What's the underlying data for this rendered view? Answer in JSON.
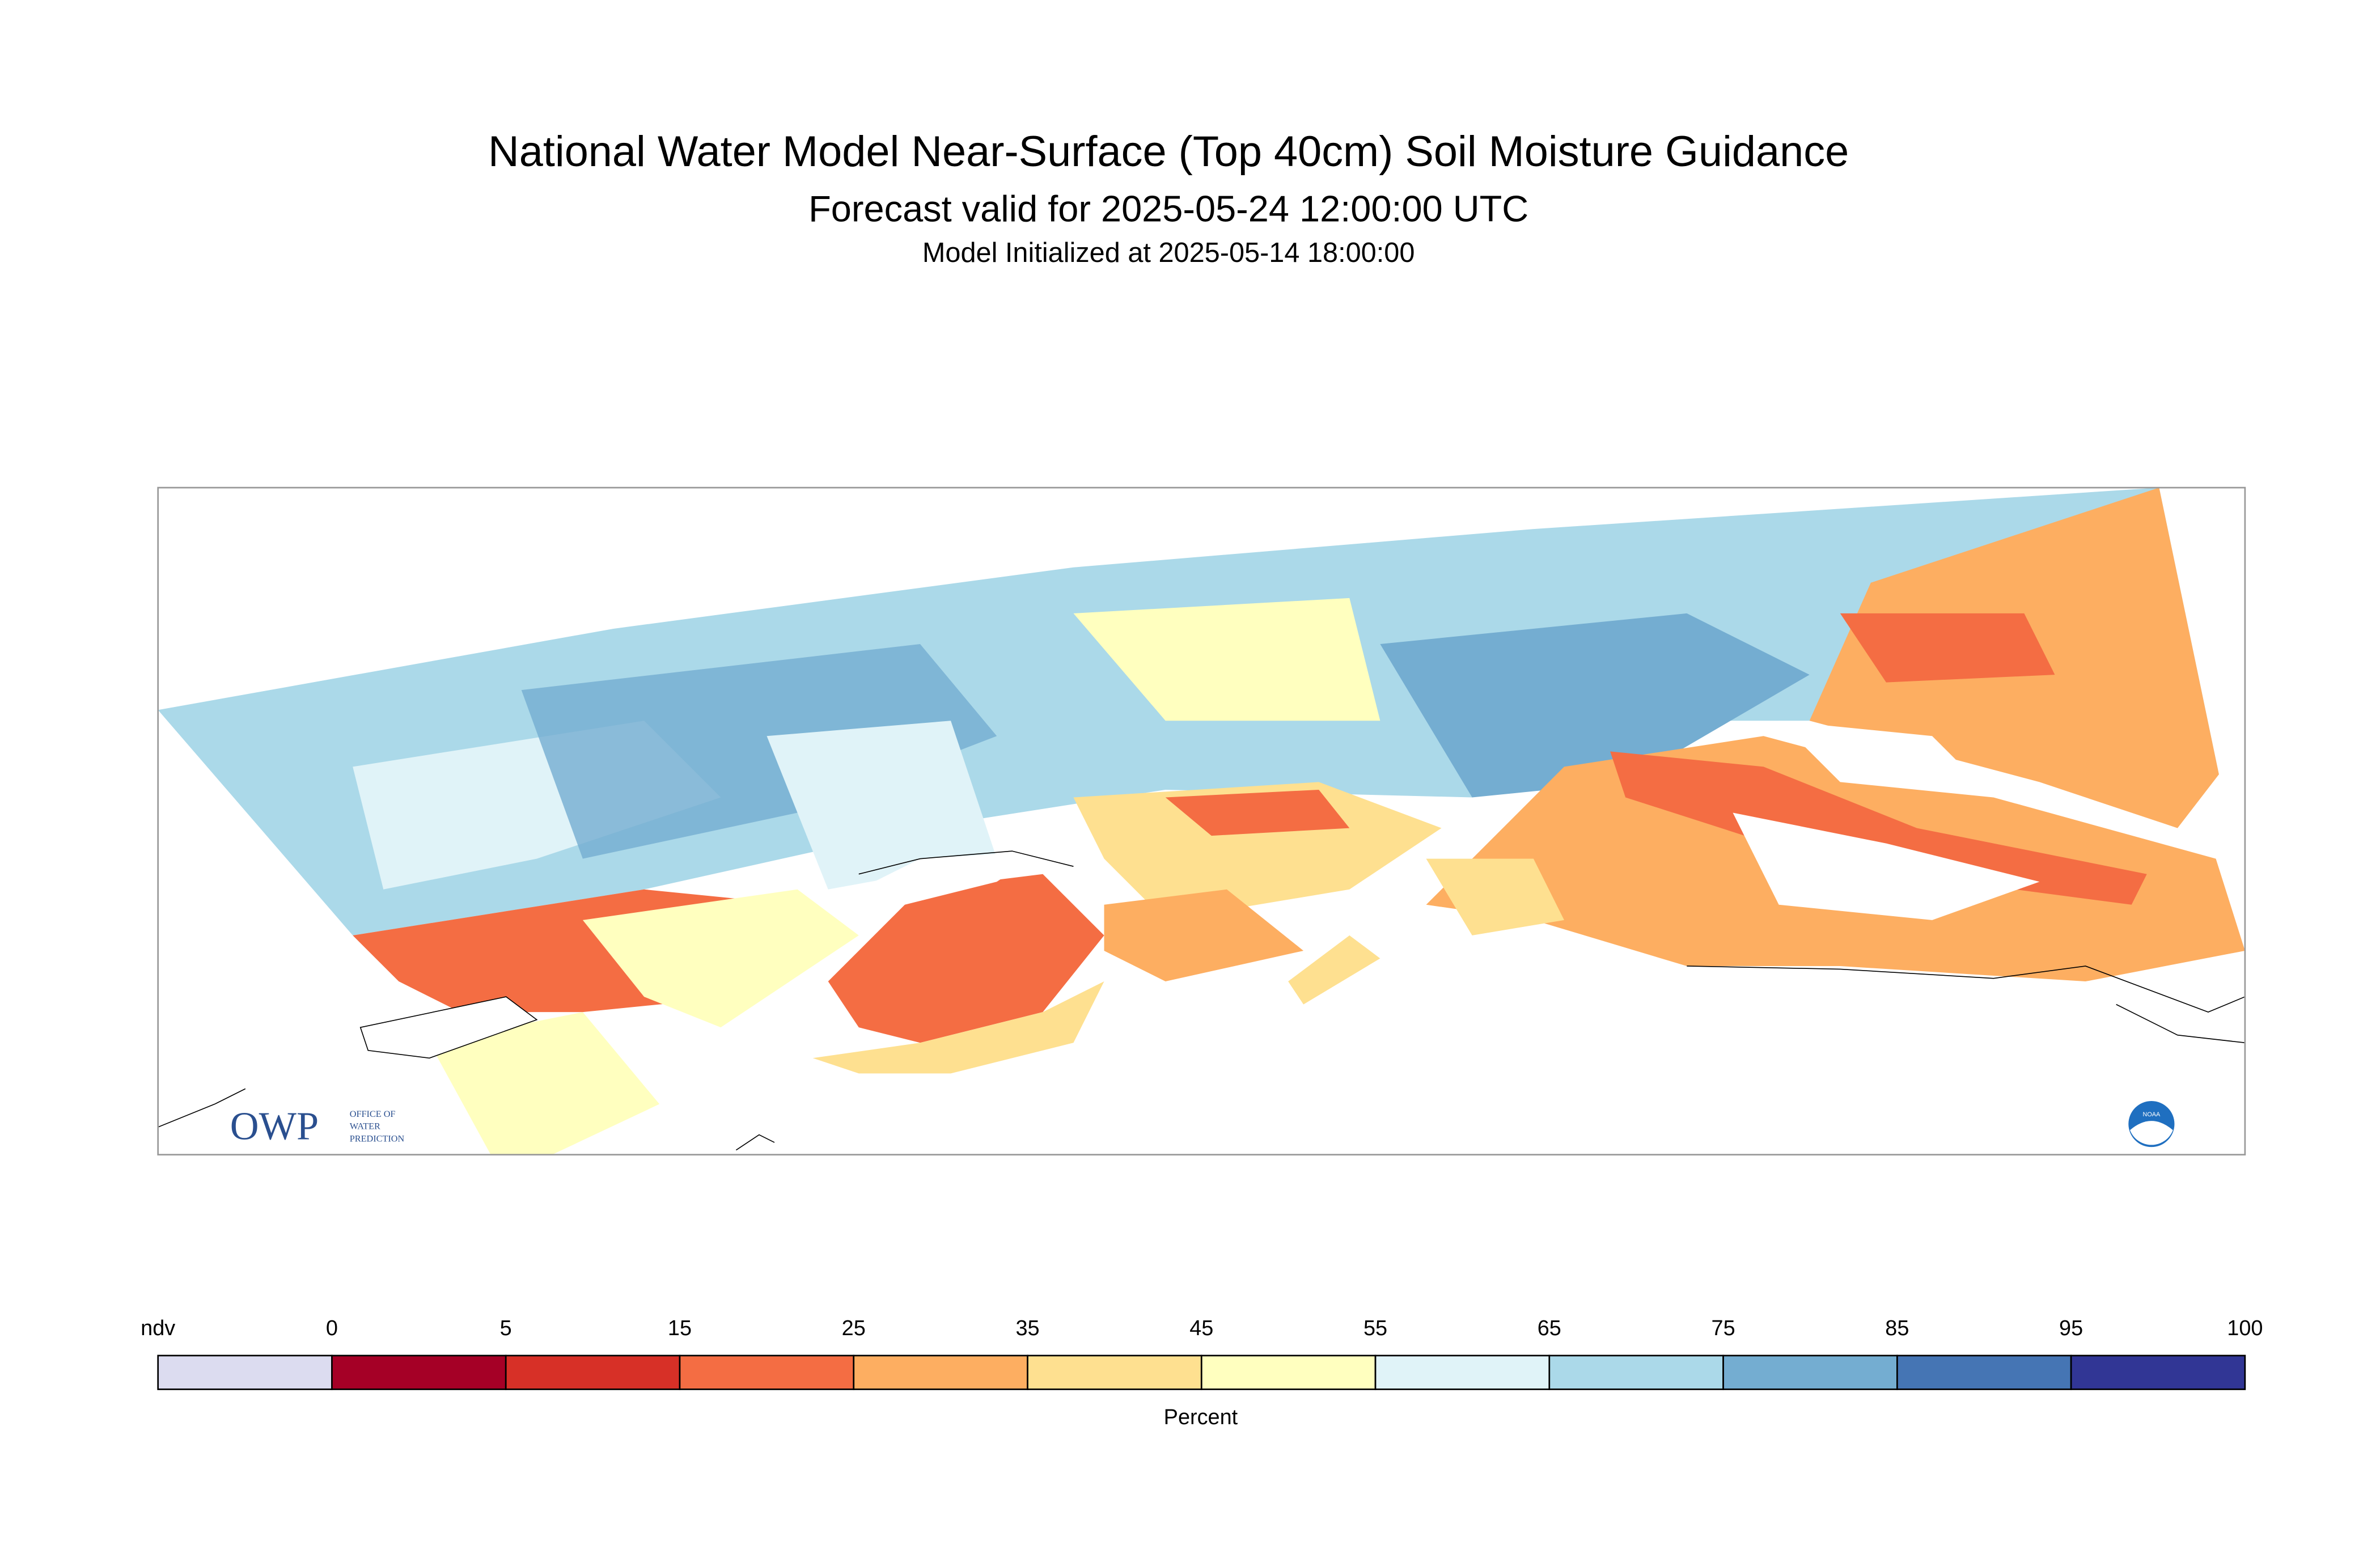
{
  "header": {
    "title": "National Water Model Near-Surface (Top 40cm) Soil Moisture Guidance",
    "subtitle": "Forecast valid for 2025-05-24 12:00:00 UTC",
    "initialized": "Model Initialized at 2025-05-14 18:00:00"
  },
  "legend": {
    "ticks": [
      "ndv",
      0,
      5,
      15,
      25,
      35,
      45,
      55,
      65,
      75,
      85,
      95,
      100
    ],
    "colors": [
      "#dcdcf0",
      "#a50026",
      "#d73027",
      "#f46d43",
      "#fdae61",
      "#fee090",
      "#ffffbf",
      "#e0f3f8",
      "#abd9e9",
      "#74add1",
      "#4575b4",
      "#313695"
    ],
    "title": "Percent"
  },
  "logos": {
    "owp": "OWP",
    "owp_name": [
      "OFFICE OF",
      "WATER",
      "PREDICTION"
    ],
    "noaa": "NOAA"
  }
}
